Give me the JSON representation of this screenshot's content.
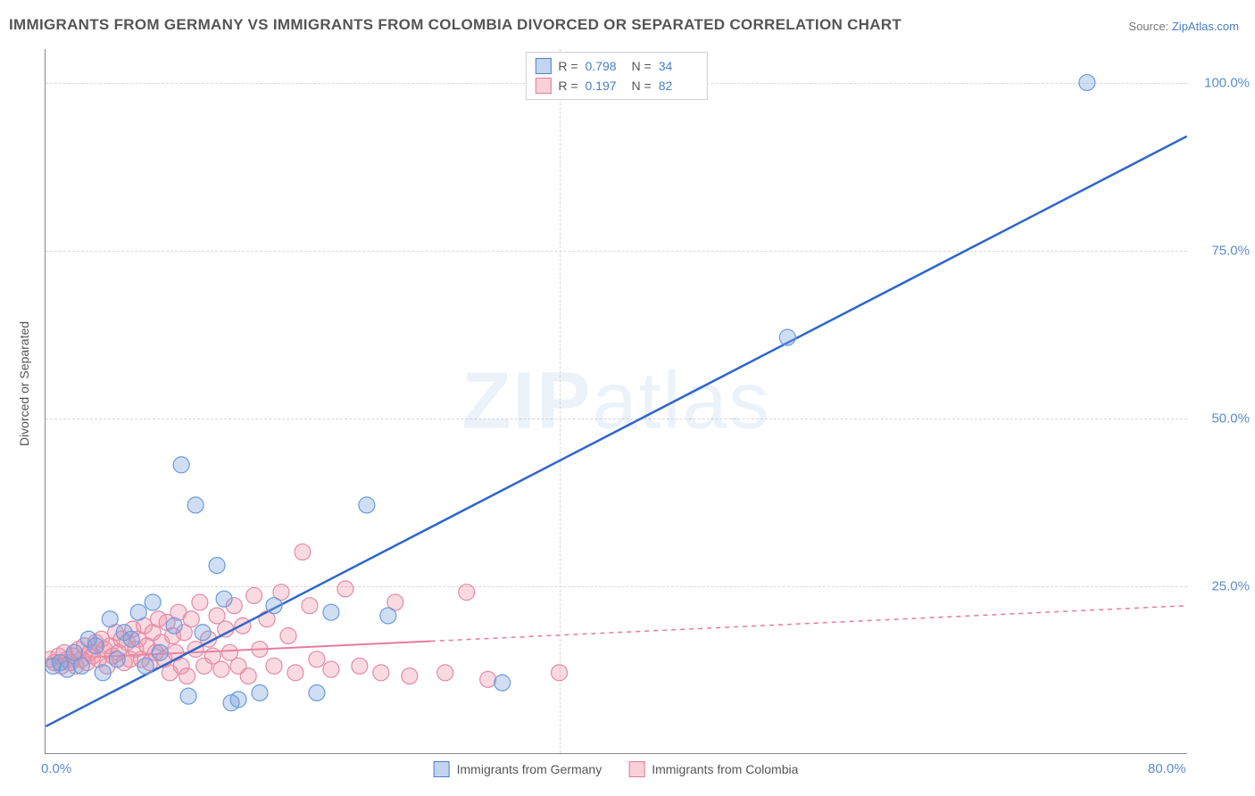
{
  "title": "IMMIGRANTS FROM GERMANY VS IMMIGRANTS FROM COLOMBIA DIVORCED OR SEPARATED CORRELATION CHART",
  "source_label": "Source:",
  "source_name": "ZipAtlas.com",
  "ylabel": "Divorced or Separated",
  "watermark": {
    "bold": "ZIP",
    "light": "atlas"
  },
  "chart": {
    "type": "scatter",
    "xlim": [
      0,
      80
    ],
    "ylim": [
      0,
      105
    ],
    "x_ticks": [
      {
        "v": 0,
        "label": "0.0%"
      },
      {
        "v": 80,
        "label": "80.0%"
      }
    ],
    "y_ticks": [
      {
        "v": 25,
        "label": "25.0%"
      },
      {
        "v": 50,
        "label": "50.0%"
      },
      {
        "v": 75,
        "label": "75.0%"
      },
      {
        "v": 100,
        "label": "100.0%"
      }
    ],
    "background_color": "#ffffff",
    "grid_color": "#d8d8d8",
    "grid_dashed": true,
    "tick_color": "#5a8ccf",
    "tick_fontsize": 15,
    "label_color": "#555555",
    "series": [
      {
        "name": "Immigrants from Germany",
        "color_fill": "rgba(120,160,220,0.35)",
        "color_stroke": "#6a9adf",
        "marker_radius": 9,
        "R": "0.798",
        "N": "34",
        "trend": {
          "x1": 0,
          "y1": 4,
          "x2": 80,
          "y2": 92,
          "stroke": "#2f66c9",
          "width": 2.5,
          "dash": ""
        },
        "points": [
          [
            0.5,
            13
          ],
          [
            1,
            13.5
          ],
          [
            1.5,
            12.5
          ],
          [
            2,
            15
          ],
          [
            2.5,
            13
          ],
          [
            3,
            17
          ],
          [
            3.5,
            16
          ],
          [
            4,
            12
          ],
          [
            4.5,
            20
          ],
          [
            5,
            14
          ],
          [
            5.5,
            18
          ],
          [
            6,
            17
          ],
          [
            6.5,
            21
          ],
          [
            7,
            13
          ],
          [
            7.5,
            22.5
          ],
          [
            8,
            15
          ],
          [
            9,
            19
          ],
          [
            9.5,
            43
          ],
          [
            10,
            8.5
          ],
          [
            10.5,
            37
          ],
          [
            11,
            18
          ],
          [
            12,
            28
          ],
          [
            12.5,
            23
          ],
          [
            13,
            7.5
          ],
          [
            13.5,
            8
          ],
          [
            15,
            9
          ],
          [
            16,
            22
          ],
          [
            19,
            9
          ],
          [
            20,
            21
          ],
          [
            22.5,
            37
          ],
          [
            24,
            20.5
          ],
          [
            32,
            10.5
          ],
          [
            52,
            62
          ],
          [
            73,
            100
          ]
        ]
      },
      {
        "name": "Immigrants from Colombia",
        "color_fill": "rgba(240,150,170,0.35)",
        "color_stroke": "#e38aa5",
        "marker_radius": 9,
        "R": "0.197",
        "N": "82",
        "trend": {
          "x1": 0,
          "y1": 14,
          "x2": 80,
          "y2": 22,
          "stroke": "#e77aa0",
          "width": 2,
          "dash": "5,5",
          "solid_until": 27
        },
        "points": [
          [
            0.3,
            14
          ],
          [
            0.6,
            13.5
          ],
          [
            0.9,
            14.5
          ],
          [
            1.1,
            13
          ],
          [
            1.3,
            15
          ],
          [
            1.5,
            14
          ],
          [
            1.7,
            13.5
          ],
          [
            1.9,
            14.5
          ],
          [
            2.1,
            13
          ],
          [
            2.3,
            15.5
          ],
          [
            2.5,
            14
          ],
          [
            2.7,
            16
          ],
          [
            2.9,
            13.5
          ],
          [
            3.1,
            15
          ],
          [
            3.3,
            14.5
          ],
          [
            3.5,
            16.5
          ],
          [
            3.7,
            14
          ],
          [
            3.9,
            17
          ],
          [
            4.1,
            15.5
          ],
          [
            4.3,
            13
          ],
          [
            4.5,
            16
          ],
          [
            4.7,
            14.5
          ],
          [
            4.9,
            18
          ],
          [
            5.1,
            15
          ],
          [
            5.3,
            17
          ],
          [
            5.5,
            13.5
          ],
          [
            5.7,
            16.5
          ],
          [
            5.9,
            14
          ],
          [
            6.1,
            18.5
          ],
          [
            6.3,
            15.5
          ],
          [
            6.5,
            17
          ],
          [
            6.7,
            14
          ],
          [
            6.9,
            19
          ],
          [
            7.1,
            16
          ],
          [
            7.3,
            13.5
          ],
          [
            7.5,
            18
          ],
          [
            7.7,
            15
          ],
          [
            7.9,
            20
          ],
          [
            8.1,
            16.5
          ],
          [
            8.3,
            14
          ],
          [
            8.5,
            19.5
          ],
          [
            8.7,
            12
          ],
          [
            8.9,
            17.5
          ],
          [
            9.1,
            15
          ],
          [
            9.3,
            21
          ],
          [
            9.5,
            13
          ],
          [
            9.7,
            18
          ],
          [
            9.9,
            11.5
          ],
          [
            10.2,
            20
          ],
          [
            10.5,
            15.5
          ],
          [
            10.8,
            22.5
          ],
          [
            11.1,
            13
          ],
          [
            11.4,
            17
          ],
          [
            11.7,
            14.5
          ],
          [
            12,
            20.5
          ],
          [
            12.3,
            12.5
          ],
          [
            12.6,
            18.5
          ],
          [
            12.9,
            15
          ],
          [
            13.2,
            22
          ],
          [
            13.5,
            13
          ],
          [
            13.8,
            19
          ],
          [
            14.2,
            11.5
          ],
          [
            14.6,
            23.5
          ],
          [
            15,
            15.5
          ],
          [
            15.5,
            20
          ],
          [
            16,
            13
          ],
          [
            16.5,
            24
          ],
          [
            17,
            17.5
          ],
          [
            17.5,
            12
          ],
          [
            18,
            30
          ],
          [
            18.5,
            22
          ],
          [
            19,
            14
          ],
          [
            20,
            12.5
          ],
          [
            21,
            24.5
          ],
          [
            22,
            13
          ],
          [
            23.5,
            12
          ],
          [
            24.5,
            22.5
          ],
          [
            25.5,
            11.5
          ],
          [
            28,
            12
          ],
          [
            29.5,
            24
          ],
          [
            31,
            11
          ],
          [
            36,
            12
          ]
        ]
      }
    ]
  },
  "legend_top": {
    "rows": [
      {
        "series": 0,
        "r_label": "R =",
        "n_label": "N ="
      },
      {
        "series": 1,
        "r_label": "R =",
        "n_label": "N ="
      }
    ]
  }
}
